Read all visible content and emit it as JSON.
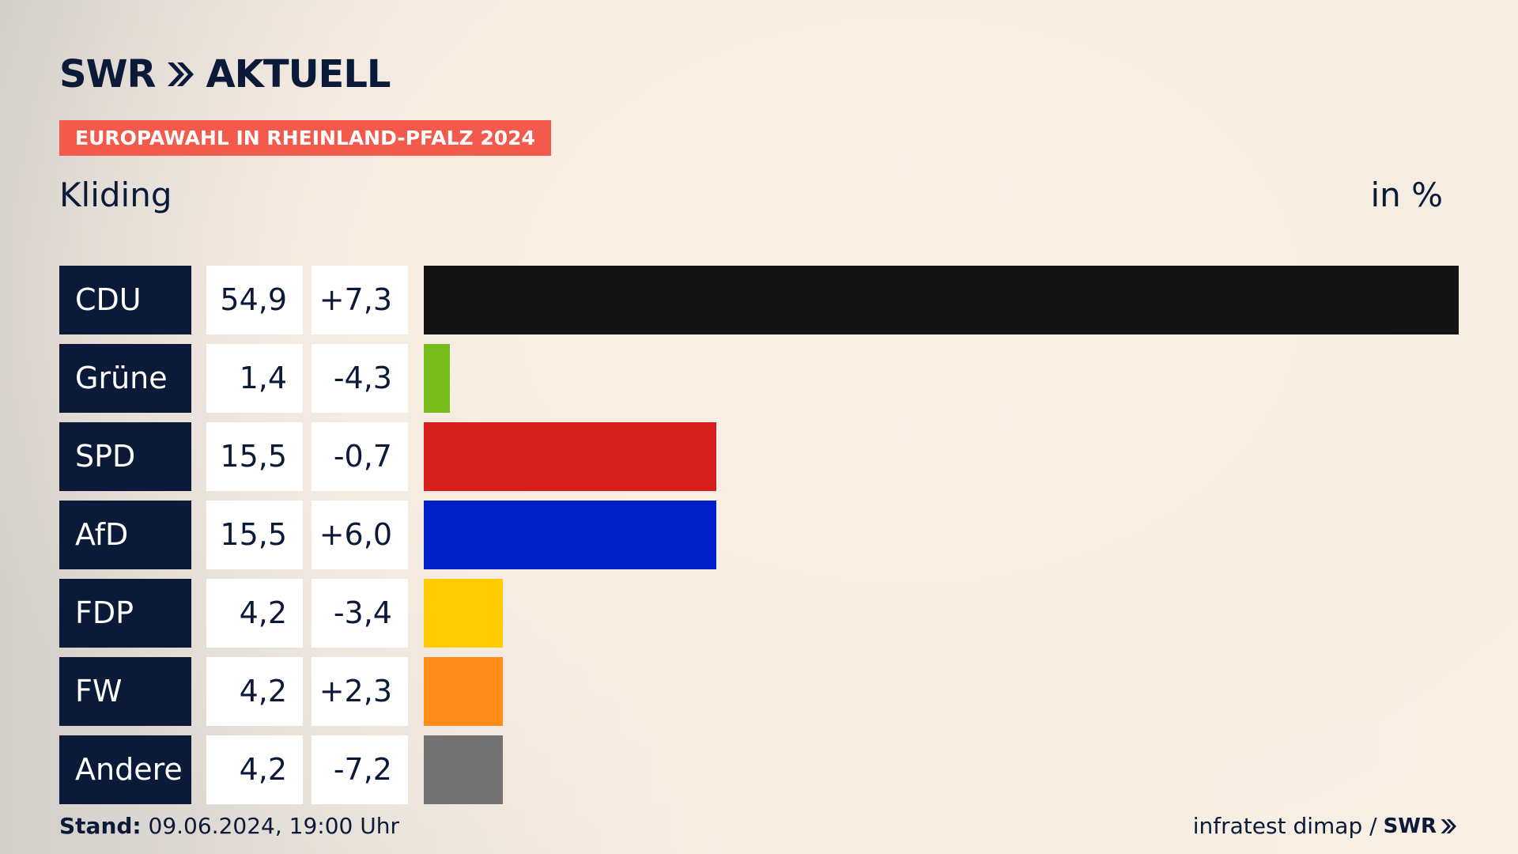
{
  "brand": {
    "logo_left": "SWR",
    "logo_right": "AKTUELL",
    "logo_icon": "double-chevron-right-icon"
  },
  "header": {
    "ribbon": "EUROPAWAHL IN RHEINLAND-PFALZ 2024",
    "region": "Kliding",
    "unit": "in %"
  },
  "colors": {
    "navy": "#0c1a3a",
    "ribbon": "#f45a4b"
  },
  "chart_data": {
    "type": "bar",
    "orientation": "horizontal",
    "title": "",
    "xlabel": "",
    "ylabel": "",
    "xlim": [
      0,
      54.9
    ],
    "grid": false,
    "categories": [
      "CDU",
      "Grüne",
      "SPD",
      "AfD",
      "FDP",
      "FW",
      "Andere"
    ],
    "values": [
      54.9,
      1.4,
      15.5,
      15.5,
      4.2,
      4.2,
      4.2
    ],
    "value_labels": [
      "54,9",
      "1,4",
      "15,5",
      "15,5",
      "4,2",
      "4,2",
      "4,2"
    ],
    "change_labels": [
      "+7,3",
      "-4,3",
      "-0,7",
      "+6,0",
      "-3,4",
      "+2,3",
      "-7,2"
    ],
    "colors": [
      "#141414",
      "#78bc1b",
      "#d81f1f",
      "#0021c8",
      "#ffcc00",
      "#ff8c18",
      "#737373"
    ]
  },
  "footer": {
    "stand_label": "Stand:",
    "stand_value": " 09.06.2024, 19:00 Uhr",
    "source": "infratest dimap /",
    "source_logo": "SWR"
  }
}
